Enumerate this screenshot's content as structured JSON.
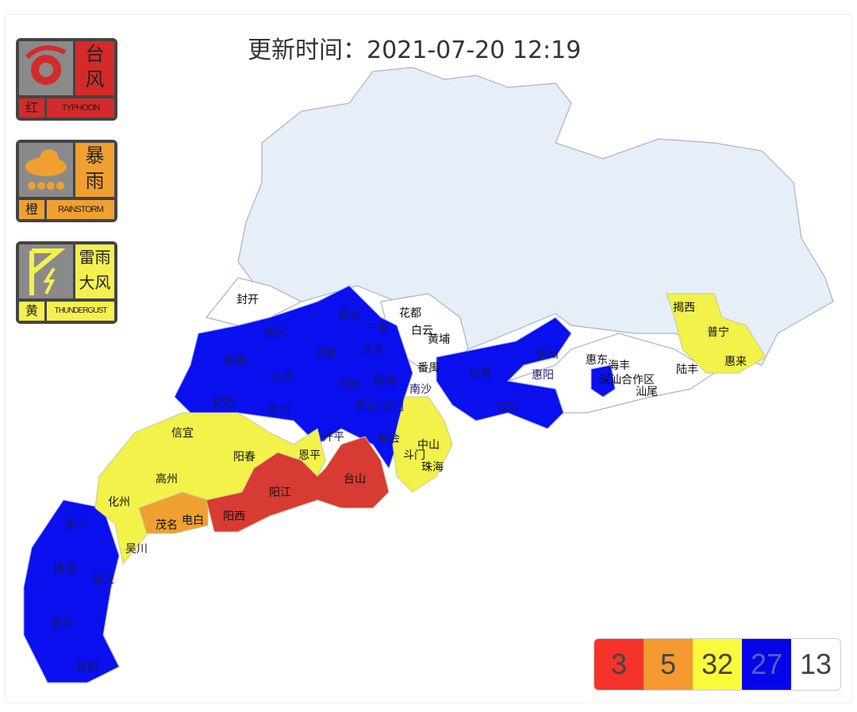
{
  "header": {
    "update_time": "更新时间：2021-07-20 12:19"
  },
  "warnings": [
    {
      "icon": "typhoon-icon",
      "title_lines": [
        "台",
        "风"
      ],
      "level": "红",
      "english": "TYPHOON",
      "color": "#d42a2a"
    },
    {
      "icon": "rainstorm-icon",
      "title_lines": [
        "暴",
        "雨"
      ],
      "level": "橙",
      "english": "RAINSTORM",
      "color": "#f0a030"
    },
    {
      "icon": "thunder-gust-icon",
      "title_lines": [
        "雷雨",
        "大风"
      ],
      "level": "黄",
      "english": "THUNDERGUST",
      "color": "#f4f050"
    }
  ],
  "colors": {
    "red": "#d83a34",
    "orange": "#eea030",
    "yellow": "#f2f24a",
    "blue": "#0a10ee",
    "none": "#ffffff",
    "no_data": "#e6eef8"
  },
  "map_labels": {
    "white": [
      "封开",
      "花都",
      "白云",
      "黄埔",
      "番禺",
      "惠东",
      "海丰",
      "深汕合作区",
      "汕尾",
      "陆丰"
    ],
    "yellow": [
      "信宜",
      "阳春",
      "恩平",
      "中山",
      "斗门",
      "珠海",
      "高州",
      "化州",
      "吴川",
      "揭西",
      "普宁",
      "惠来"
    ],
    "orange": [
      "茂名",
      "电白"
    ],
    "red": [
      "阳江",
      "阳西",
      "台山"
    ],
    "blue": [
      "德庆",
      "郁南",
      "云浮",
      "罗定",
      "新兴",
      "四会",
      "三水",
      "高要",
      "南海",
      "高明",
      "鹤山",
      "江门",
      "开平",
      "新会",
      "顺德",
      "南沙",
      "东莞",
      "惠州",
      "惠阳",
      "深圳",
      "廉江",
      "遂溪",
      "湛江",
      "雷州",
      "徐闻"
    ]
  },
  "legend": [
    {
      "count": "3",
      "color": "#f5332a"
    },
    {
      "count": "5",
      "color": "#f49a30"
    },
    {
      "count": "32",
      "color": "#fafa3c"
    },
    {
      "count": "27",
      "color": "#0505e8"
    },
    {
      "count": "13",
      "color": "#ffffff"
    }
  ]
}
